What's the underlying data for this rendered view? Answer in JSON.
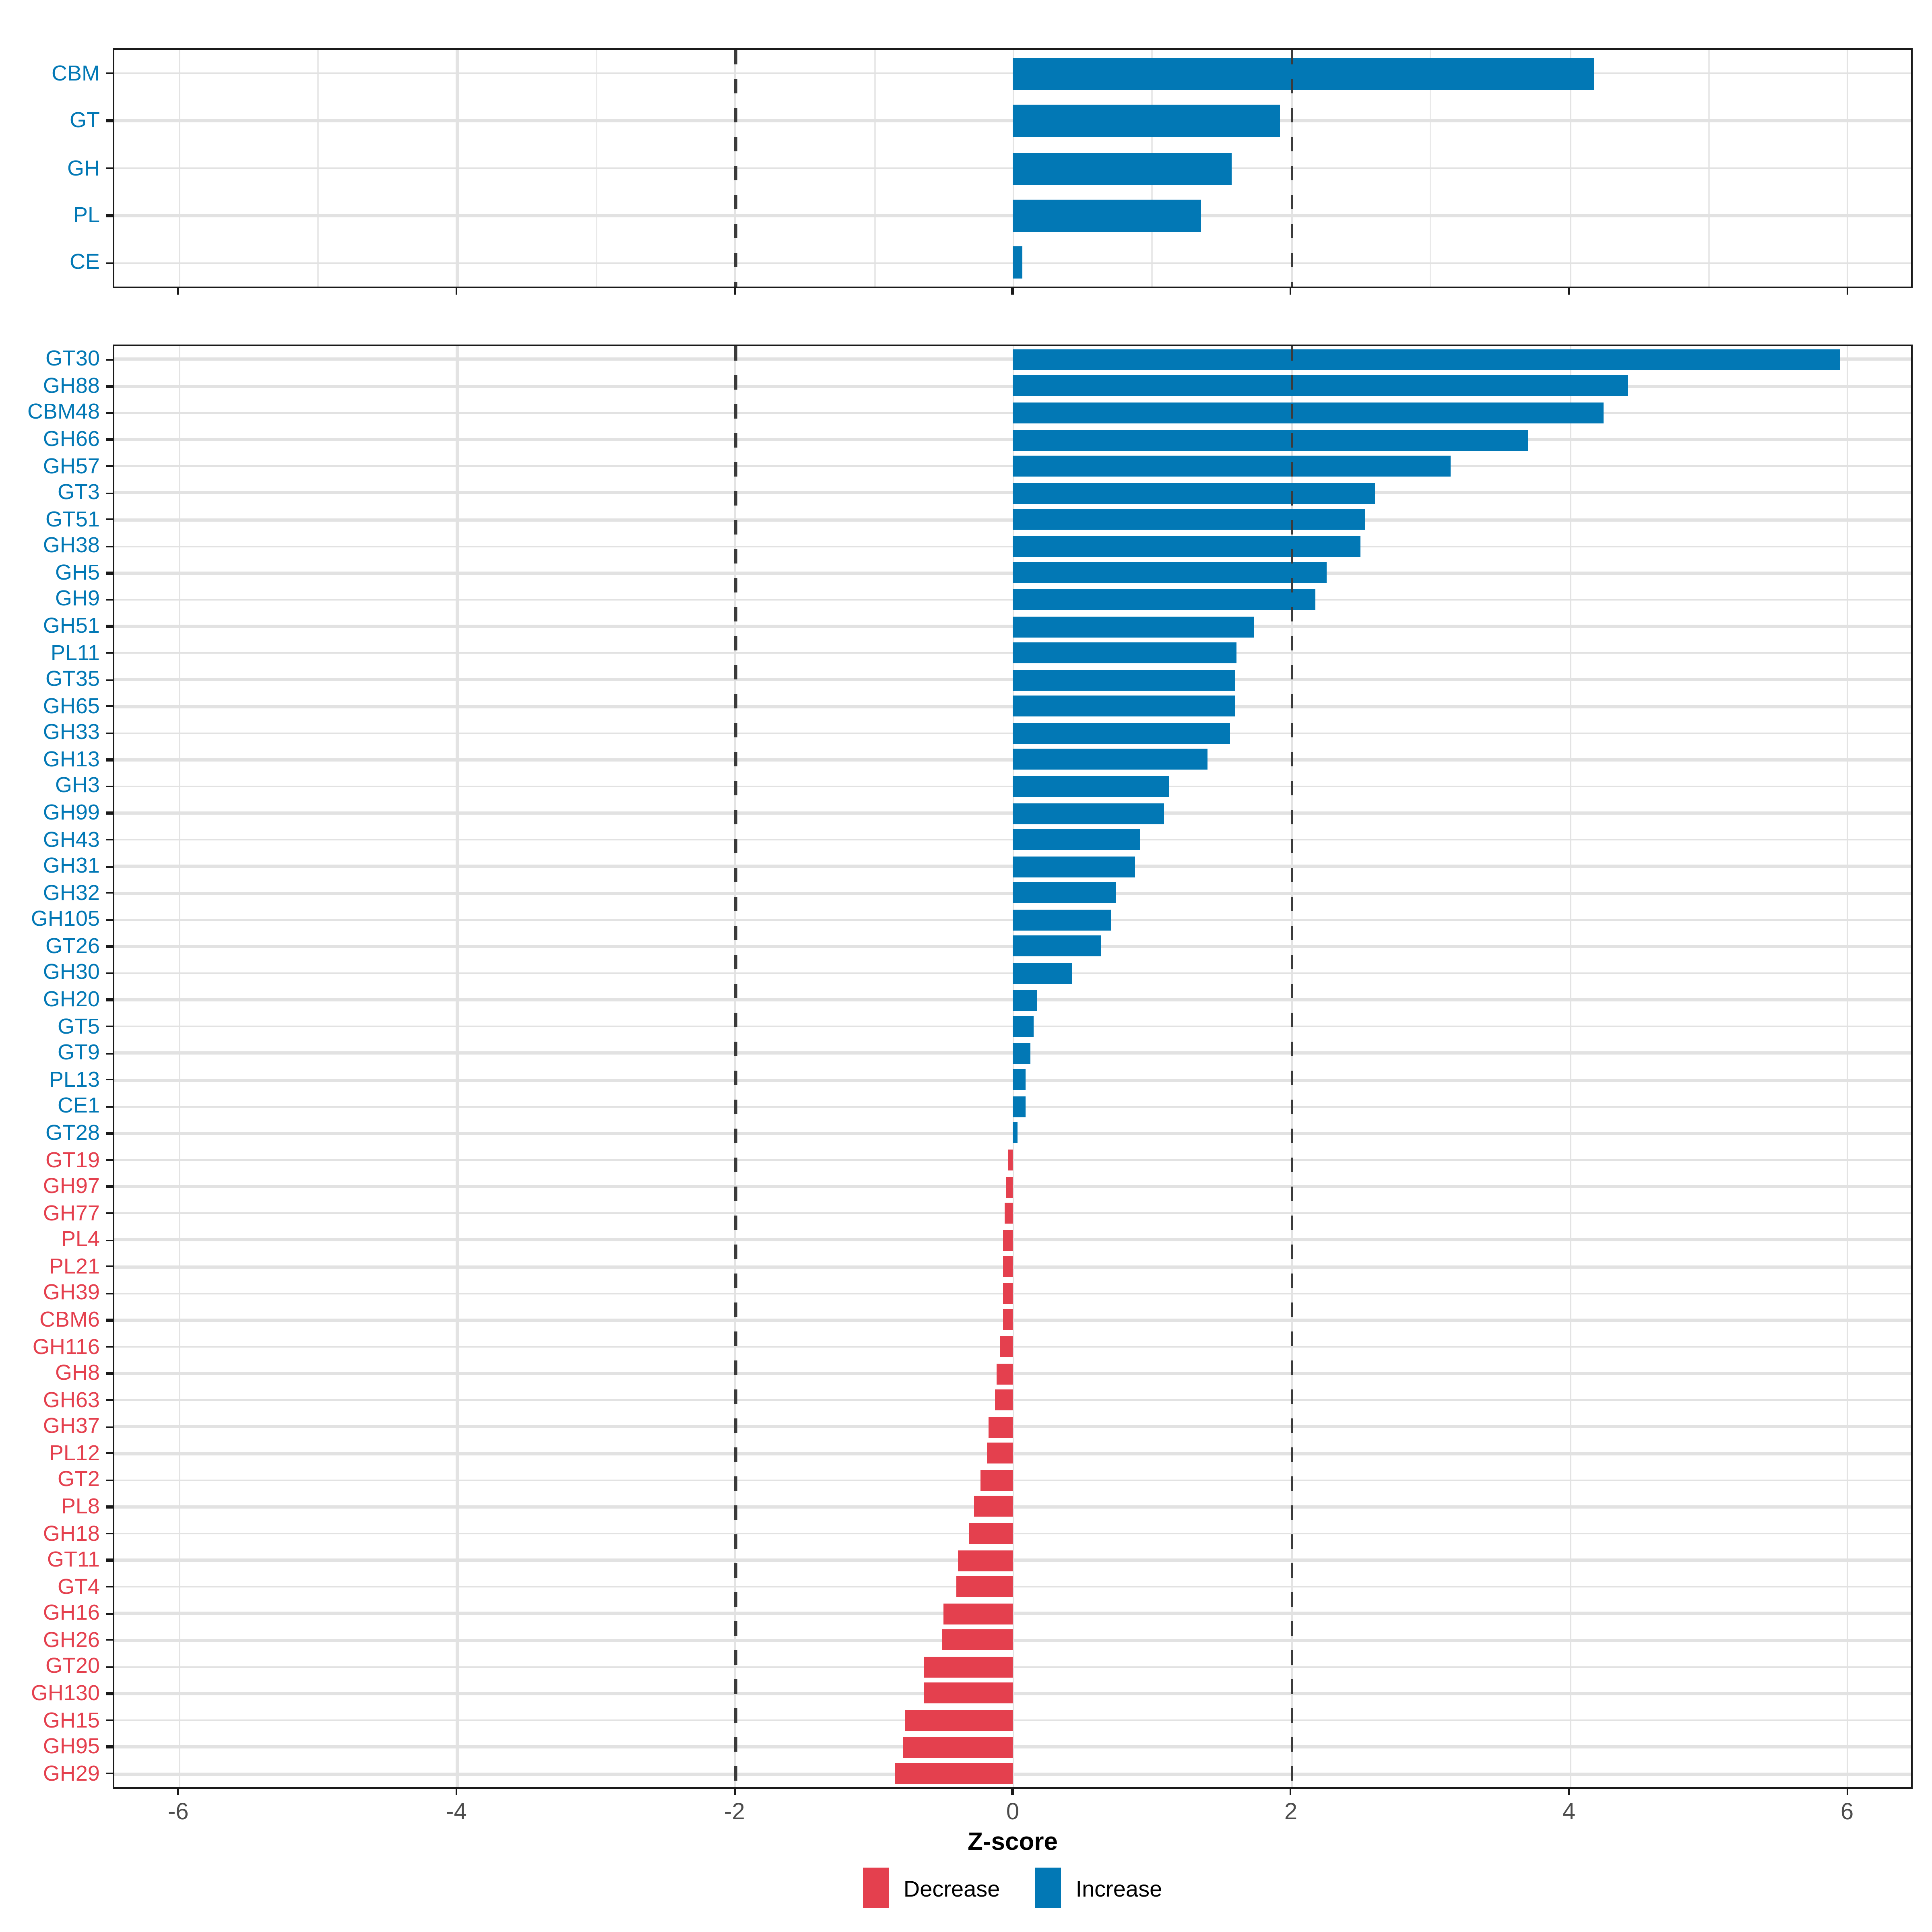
{
  "figure": {
    "xlabel": "Z-score",
    "legend": [
      {
        "label": "Decrease",
        "group": "decrease",
        "color": "#E4404E"
      },
      {
        "label": "Increase",
        "group": "increase",
        "color": "#0278B5"
      }
    ],
    "colors": {
      "increase": "#0278B5",
      "decrease": "#E4404E",
      "gridline": "#e2e2e2",
      "dashed_reference_line": "#3b3b3b",
      "axis_text": "#4d4d4d",
      "panel_border": "#1a1a1a"
    }
  },
  "chart_data": [
    {
      "type": "bar",
      "orientation": "horizontal",
      "panel": "family-summary",
      "title": "",
      "xlabel": "",
      "ylabel": "",
      "categories": [
        "CBM",
        "GT",
        "GH",
        "PL",
        "CE"
      ],
      "values": [
        4.18,
        1.92,
        1.58,
        1.35,
        0.07
      ],
      "groups": [
        "increase",
        "increase",
        "increase",
        "increase",
        "increase"
      ],
      "xlim": [
        -6.46,
        6.46
      ],
      "x_major_ticks": [
        -6,
        -4,
        -2,
        0,
        2,
        4,
        6
      ],
      "x_minor_gridlines": [
        -5,
        -3,
        -1,
        1,
        3,
        5
      ],
      "reference_vlines": [
        -2,
        2
      ],
      "grid": "on",
      "legend_position": "none"
    },
    {
      "type": "bar",
      "orientation": "horizontal",
      "panel": "family-detail",
      "title": "",
      "xlabel": "Z-score",
      "ylabel": "",
      "categories": [
        "GT30",
        "GH88",
        "CBM48",
        "GH66",
        "GH57",
        "GT3",
        "GT51",
        "GH38",
        "GH5",
        "GH9",
        "GH51",
        "PL11",
        "GT35",
        "GH65",
        "GH33",
        "GH13",
        "GH3",
        "GH99",
        "GH43",
        "GH31",
        "GH32",
        "GH105",
        "GT26",
        "GH30",
        "GH20",
        "GT5",
        "GT9",
        "PL13",
        "CE1",
        "GT28",
        "GT19",
        "GH97",
        "GH77",
        "PL4",
        "PL21",
        "GH39",
        "CBM6",
        "GH116",
        "GH8",
        "GH63",
        "GH37",
        "PL12",
        "GT2",
        "PL8",
        "GH18",
        "GT11",
        "GT4",
        "GH16",
        "GH26",
        "GT20",
        "GH130",
        "GH15",
        "GH95",
        "GH29"
      ],
      "values": [
        5.95,
        4.42,
        4.25,
        3.7,
        3.15,
        2.6,
        2.53,
        2.5,
        2.26,
        2.18,
        1.74,
        1.61,
        1.6,
        1.6,
        1.56,
        1.4,
        1.12,
        1.09,
        0.92,
        0.88,
        0.74,
        0.71,
        0.64,
        0.43,
        0.17,
        0.15,
        0.13,
        0.09,
        0.09,
        0.04,
        -0.03,
        -0.05,
        -0.06,
        -0.07,
        -0.07,
        -0.07,
        -0.07,
        -0.09,
        -0.11,
        -0.13,
        -0.17,
        -0.18,
        -0.23,
        -0.28,
        -0.31,
        -0.39,
        -0.41,
        -0.5,
        -0.51,
        -0.64,
        -0.64,
        -0.78,
        -0.79,
        -0.84
      ],
      "groups": [
        "increase",
        "increase",
        "increase",
        "increase",
        "increase",
        "increase",
        "increase",
        "increase",
        "increase",
        "increase",
        "increase",
        "increase",
        "increase",
        "increase",
        "increase",
        "increase",
        "increase",
        "increase",
        "increase",
        "increase",
        "increase",
        "increase",
        "increase",
        "increase",
        "increase",
        "increase",
        "increase",
        "increase",
        "increase",
        "increase",
        "decrease",
        "decrease",
        "decrease",
        "decrease",
        "decrease",
        "decrease",
        "decrease",
        "decrease",
        "decrease",
        "decrease",
        "decrease",
        "decrease",
        "decrease",
        "decrease",
        "decrease",
        "decrease",
        "decrease",
        "decrease",
        "decrease",
        "decrease",
        "decrease",
        "decrease",
        "decrease",
        "decrease"
      ],
      "xlim": [
        -6.46,
        6.46
      ],
      "x_major_ticks": [
        -6,
        -4,
        -2,
        0,
        2,
        4,
        6
      ],
      "x_minor_gridlines": [],
      "reference_vlines": [
        -2,
        2
      ],
      "grid": "on",
      "legend_position": "bottom"
    }
  ]
}
